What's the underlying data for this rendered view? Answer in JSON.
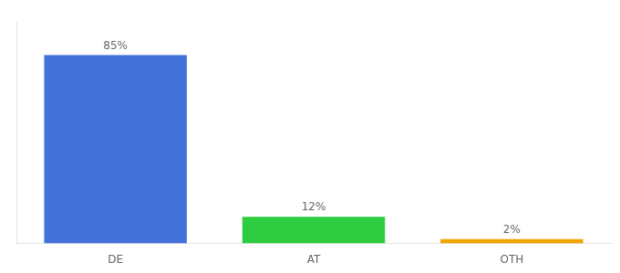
{
  "chart_data": {
    "type": "bar",
    "categories": [
      "DE",
      "AT",
      "OTH"
    ],
    "values": [
      85,
      12,
      2
    ],
    "value_labels": [
      "85%",
      "12%",
      "2%"
    ],
    "colors": [
      "#4472db",
      "#2ecc40",
      "#f0a500"
    ],
    "ylim": [
      0,
      100
    ],
    "grid": false,
    "data_labels": true,
    "tick_labels": "x"
  }
}
